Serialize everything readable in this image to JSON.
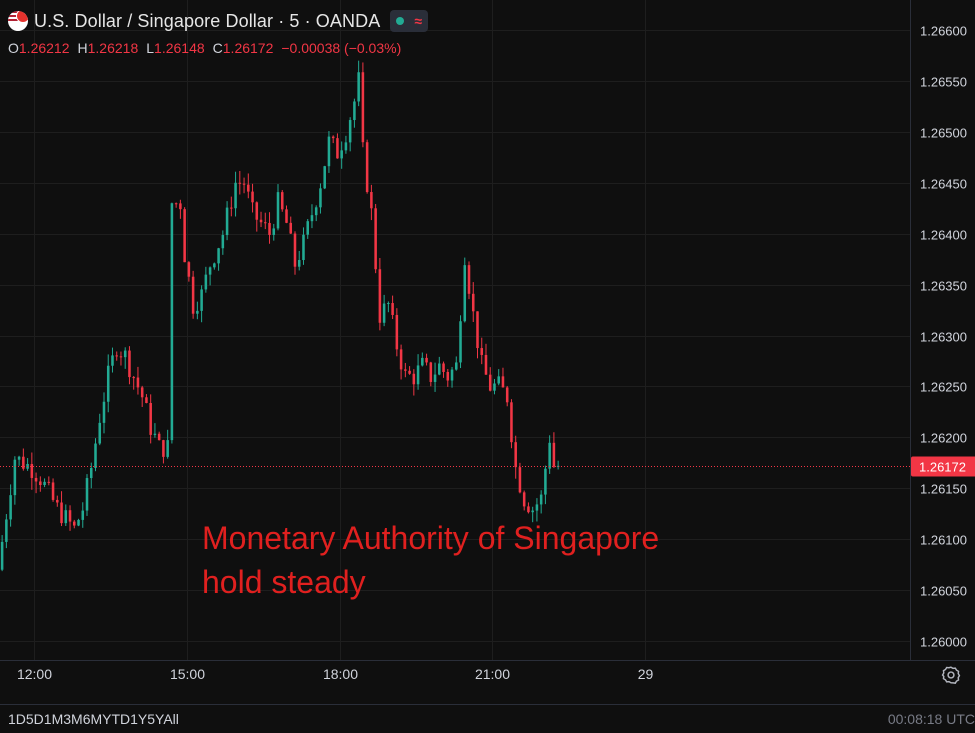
{
  "header": {
    "title": "U.S. Dollar / Singapore Dollar · 5 · OANDA",
    "ohlc": {
      "o_label": "O",
      "o_value": "1.26212",
      "h_label": "H",
      "h_value": "1.26218",
      "l_label": "L",
      "l_value": "1.26148",
      "c_label": "C",
      "c_value": "1.26172",
      "change": "−0.00038 (−0.03%)"
    }
  },
  "annotation": {
    "line1": "Monetary Authority of Singapore",
    "line2": "hold steady"
  },
  "footer": {
    "ranges": "1D5D1M3M6MYTD1Y5YAll",
    "clock": "00:08:18 UTC"
  },
  "colors": {
    "background": "#0f0f0f",
    "up": "#22ab94",
    "down": "#f23645",
    "grid": "#1e1e1e",
    "annotation": "#e0201f"
  },
  "icons": [
    "flag-icon",
    "market-status-dot-icon",
    "wave-icon",
    "settings-gear-icon"
  ],
  "chart_data": {
    "type": "candlestick",
    "ylim": [
      1.26,
      1.266
    ],
    "y_ticks": [
      "1.26000",
      "1.26050",
      "1.26100",
      "1.26150",
      "1.26200",
      "1.26250",
      "1.26300",
      "1.26350",
      "1.26400",
      "1.26450",
      "1.26500",
      "1.26550",
      "1.26600"
    ],
    "x_range": [
      11.3333,
      29.2
    ],
    "x_ticks": [
      {
        "x": 12,
        "label": "12:00"
      },
      {
        "x": 15,
        "label": "15:00"
      },
      {
        "x": 18,
        "label": "18:00"
      },
      {
        "x": 21,
        "label": "21:00"
      },
      {
        "x": 24,
        "label": "29"
      }
    ],
    "grid": true,
    "current_price": 1.26172,
    "current_price_label": "1.26172",
    "anchors": [
      [
        0,
        1.2607
      ],
      [
        4,
        1.2618
      ],
      [
        8,
        1.2617
      ],
      [
        10,
        1.2616
      ],
      [
        14,
        1.2613
      ],
      [
        16,
        1.2612
      ],
      [
        18,
        1.2611
      ],
      [
        20,
        1.2613
      ],
      [
        22,
        1.2617
      ],
      [
        24,
        1.2622
      ],
      [
        26,
        1.2626
      ],
      [
        28,
        1.2629
      ],
      [
        30,
        1.2628
      ],
      [
        32,
        1.2626
      ],
      [
        34,
        1.2624
      ],
      [
        36,
        1.2621
      ],
      [
        38,
        1.2619
      ],
      [
        40,
        1.2619
      ],
      [
        41,
        1.2643
      ],
      [
        43,
        1.2643
      ],
      [
        44,
        1.2638
      ],
      [
        46,
        1.2633
      ],
      [
        48,
        1.2634
      ],
      [
        50,
        1.2637
      ],
      [
        53,
        1.264
      ],
      [
        56,
        1.2645
      ],
      [
        58,
        1.2645
      ],
      [
        60,
        1.2642
      ],
      [
        62,
        1.2641
      ],
      [
        64,
        1.264
      ],
      [
        66,
        1.2643
      ],
      [
        68,
        1.2641
      ],
      [
        70,
        1.2637
      ],
      [
        72,
        1.2639
      ],
      [
        74,
        1.2642
      ],
      [
        76,
        1.2645
      ],
      [
        78,
        1.2649
      ],
      [
        80,
        1.2648
      ],
      [
        82,
        1.265
      ],
      [
        84,
        1.2653
      ],
      [
        85,
        1.2655
      ],
      [
        86,
        1.2648
      ],
      [
        88,
        1.2642
      ],
      [
        90,
        1.2632
      ],
      [
        92,
        1.2633
      ],
      [
        94,
        1.2629
      ],
      [
        96,
        1.2626
      ],
      [
        98,
        1.2626
      ],
      [
        100,
        1.2627
      ],
      [
        102,
        1.2626
      ],
      [
        104,
        1.2627
      ],
      [
        106,
        1.2626
      ],
      [
        108,
        1.2627
      ],
      [
        110,
        1.2638
      ],
      [
        112,
        1.2632
      ],
      [
        114,
        1.2627
      ],
      [
        116,
        1.2625
      ],
      [
        118,
        1.2625
      ],
      [
        120,
        1.2624
      ],
      [
        122,
        1.2617
      ],
      [
        124,
        1.2614
      ],
      [
        126,
        1.2613
      ],
      [
        128,
        1.2614
      ],
      [
        130,
        1.262
      ],
      [
        131,
        1.26172
      ]
    ],
    "candle_count": 132,
    "candle_minutes": 5
  }
}
